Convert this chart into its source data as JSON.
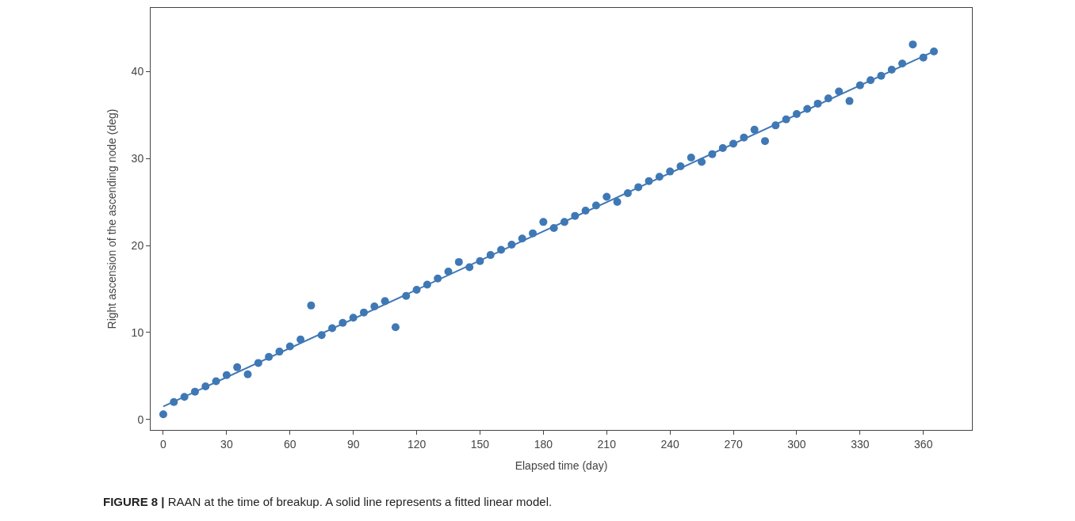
{
  "chart_data": {
    "type": "scatter",
    "xlabel": "Elapsed time (day)",
    "ylabel": "Right ascension of the ascending node (deg)",
    "x": [
      0,
      5,
      10,
      15,
      20,
      25,
      30,
      35,
      40,
      45,
      50,
      55,
      60,
      65,
      70,
      75,
      80,
      85,
      90,
      95,
      100,
      105,
      110,
      115,
      120,
      125,
      130,
      135,
      140,
      145,
      150,
      155,
      160,
      165,
      170,
      175,
      180,
      185,
      190,
      195,
      200,
      205,
      210,
      215,
      220,
      225,
      230,
      235,
      240,
      245,
      250,
      255,
      260,
      265,
      270,
      275,
      280,
      285,
      290,
      295,
      300,
      305,
      310,
      315,
      320,
      325,
      330,
      335,
      340,
      345,
      350,
      355,
      360,
      365
    ],
    "series": [
      {
        "color": "#3f78b5",
        "marker": "circle",
        "values": [
          0.6,
          2.0,
          2.6,
          3.2,
          3.8,
          4.4,
          5.1,
          6.0,
          5.2,
          6.5,
          7.2,
          7.8,
          8.4,
          9.2,
          13.1,
          9.7,
          10.5,
          11.1,
          11.7,
          12.3,
          13.0,
          13.6,
          10.6,
          14.2,
          14.9,
          15.5,
          16.2,
          17.0,
          18.1,
          17.5,
          18.2,
          18.9,
          19.5,
          20.1,
          20.8,
          21.4,
          22.7,
          22.0,
          22.7,
          23.4,
          24.0,
          24.6,
          25.6,
          25.0,
          26.0,
          26.7,
          27.4,
          27.9,
          28.5,
          29.1,
          30.1,
          29.6,
          30.5,
          31.2,
          31.7,
          32.4,
          33.3,
          32.0,
          33.8,
          34.5,
          35.1,
          35.7,
          36.3,
          36.9,
          37.7,
          36.6,
          38.4,
          39.0,
          39.5,
          40.2,
          40.9,
          43.1,
          41.6,
          42.3
        ]
      },
      {
        "type": "line",
        "color": "#3f78b5",
        "line_style": "solid",
        "x": [
          0,
          365
        ],
        "values": [
          1.5,
          42.3
        ]
      }
    ],
    "xlim": [
      -6,
      383
    ],
    "xticks": [
      0,
      30,
      60,
      90,
      120,
      150,
      180,
      210,
      240,
      270,
      300,
      330,
      360
    ],
    "ylim": [
      -1.2,
      47.3
    ],
    "yticks": [
      0,
      10,
      20,
      30,
      40
    ],
    "annotations": [
      "FIGURE 8 | RAAN at the time of breakup. A solid line represents a fitted linear model."
    ]
  }
}
